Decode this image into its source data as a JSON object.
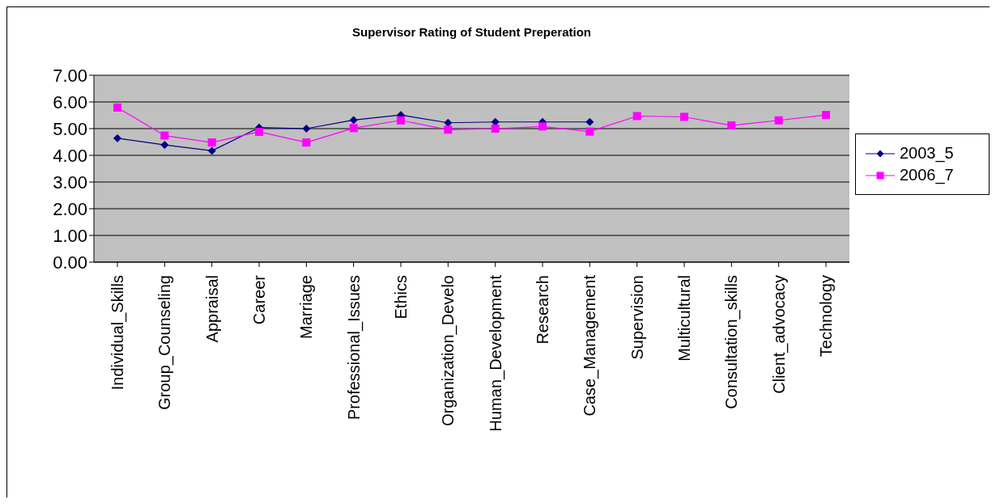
{
  "chart_data": {
    "type": "line",
    "title": "Supervisor Rating of Student Preperation",
    "categories": [
      "Individual_Skills",
      "Group_Counseling",
      "Appraisal",
      "Career",
      "Marriage",
      "Professional_Issues",
      "Ethics",
      "Organization_Develo",
      "Human_Development",
      "Research",
      "Case_Management",
      "Supervision",
      "Multicultural",
      "Consultation_skills",
      "Client_advocacy",
      "Technology"
    ],
    "series": [
      {
        "name": "2003_5",
        "color": "#000080",
        "marker": "diamond",
        "values": [
          4.64,
          4.39,
          4.17,
          5.04,
          5.0,
          5.32,
          5.51,
          5.22,
          5.25,
          5.25,
          5.25,
          null,
          null,
          null,
          null,
          null
        ]
      },
      {
        "name": "2006_7",
        "color": "#ff00ff",
        "marker": "square",
        "values": [
          5.79,
          4.74,
          4.48,
          4.88,
          4.48,
          5.02,
          5.31,
          4.96,
          5.0,
          5.08,
          4.89,
          5.47,
          5.44,
          5.12,
          5.31,
          5.51
        ]
      }
    ],
    "ylim": [
      0,
      7
    ],
    "yticks": [
      {
        "value": 0,
        "label": "0.00"
      },
      {
        "value": 1,
        "label": "1.00"
      },
      {
        "value": 2,
        "label": "2.00"
      },
      {
        "value": 3,
        "label": "3.00"
      },
      {
        "value": 4,
        "label": "4.00"
      },
      {
        "value": 5,
        "label": "5.00"
      },
      {
        "value": 6,
        "label": "6.00"
      },
      {
        "value": 7,
        "label": "7.00"
      }
    ],
    "grid": "y",
    "legend": "right",
    "line_style": "solid"
  }
}
